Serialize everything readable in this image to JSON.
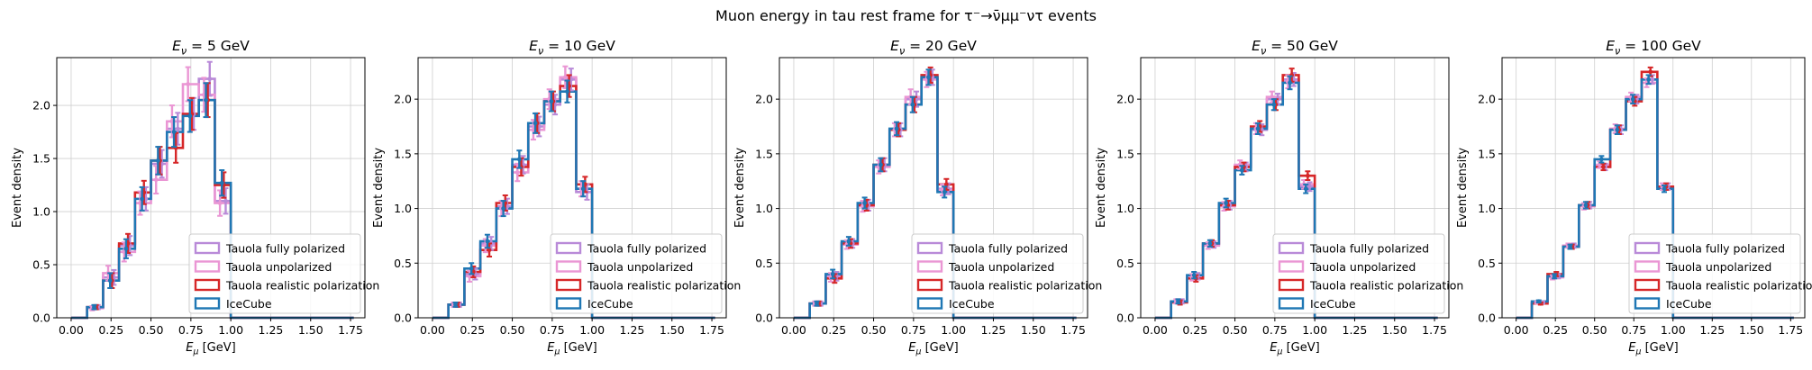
{
  "suptitle": "Muon energy in tau rest frame for τ⁻→ν̄μμ⁻ντ events",
  "colors": {
    "fully": "#b98ad8",
    "unpol": "#ea96d4",
    "realistic": "#d62728",
    "icecube": "#1f77b4",
    "grid": "#cfcfcf"
  },
  "chart_data": [
    {
      "type": "step-histogram",
      "title": "Eν = 5 GeV",
      "xlabel": "Eμ [GeV]",
      "ylabel": "Event density",
      "xlim": [
        -0.09,
        1.84
      ],
      "ylim": [
        0,
        2.45
      ],
      "xticks": [
        "0.00",
        "0.25",
        "0.50",
        "0.75",
        "1.00",
        "1.25",
        "1.50",
        "1.75"
      ],
      "yticks": [
        "0.0",
        "0.5",
        "1.0",
        "1.5",
        "2.0"
      ],
      "bin_edges": [
        0.0,
        0.1,
        0.2,
        0.3,
        0.4,
        0.5,
        0.6,
        0.7,
        0.8,
        0.9,
        1.0,
        1.77
      ],
      "legend": [
        "Tauola fully polarized",
        "Tauola unpolarized",
        "Tauola realistic polarization",
        "IceCube"
      ],
      "series": [
        {
          "name": "Tauola fully polarized",
          "key": "fully",
          "values": [
            0,
            0.1,
            0.38,
            0.68,
            1.12,
            1.45,
            1.78,
            1.92,
            2.25,
            1.1,
            0,
            0
          ],
          "errors": [
            0,
            0.02,
            0.07,
            0.09,
            0.11,
            0.13,
            0.15,
            0.15,
            0.16,
            0.12,
            0,
            0
          ]
        },
        {
          "name": "Tauola unpolarized",
          "key": "unpol",
          "values": [
            0,
            0.09,
            0.42,
            0.62,
            1.08,
            1.3,
            1.85,
            2.2,
            2.1,
            1.08,
            0,
            0
          ],
          "errors": [
            0,
            0.02,
            0.07,
            0.09,
            0.11,
            0.13,
            0.15,
            0.16,
            0.16,
            0.12,
            0,
            0
          ]
        },
        {
          "name": "Tauola realistic polarization",
          "key": "realistic",
          "values": [
            0,
            0.1,
            0.35,
            0.7,
            1.18,
            1.48,
            1.6,
            1.92,
            2.05,
            1.25,
            0,
            0
          ],
          "errors": [
            0,
            0.02,
            0.07,
            0.09,
            0.11,
            0.13,
            0.14,
            0.15,
            0.16,
            0.12,
            0,
            0
          ]
        },
        {
          "name": "IceCube",
          "key": "icecube",
          "values": [
            0,
            0.1,
            0.35,
            0.65,
            1.12,
            1.48,
            1.75,
            1.9,
            2.05,
            1.27,
            0,
            0
          ],
          "errors": [
            0,
            0.02,
            0.07,
            0.09,
            0.11,
            0.13,
            0.14,
            0.15,
            0.16,
            0.12,
            0,
            0
          ]
        }
      ]
    },
    {
      "type": "step-histogram",
      "title": "Eν = 10 GeV",
      "xlabel": "Eμ [GeV]",
      "ylabel": "Event density",
      "xlim": [
        -0.09,
        1.84
      ],
      "ylim": [
        0,
        2.38
      ],
      "xticks": [
        "0.00",
        "0.25",
        "0.50",
        "0.75",
        "1.00",
        "1.25",
        "1.50",
        "1.75"
      ],
      "yticks": [
        "0.0",
        "0.5",
        "1.0",
        "1.5",
        "2.0"
      ],
      "bin_edges": [
        0.0,
        0.1,
        0.2,
        0.3,
        0.4,
        0.5,
        0.6,
        0.7,
        0.8,
        0.9,
        1.0,
        1.77
      ],
      "legend": [
        "Tauola fully polarized",
        "Tauola unpolarized",
        "Tauola realistic polarization",
        "IceCube"
      ],
      "series": [
        {
          "name": "Tauola fully polarized",
          "key": "fully",
          "values": [
            0,
            0.12,
            0.4,
            0.68,
            1.02,
            1.4,
            1.75,
            1.95,
            2.18,
            1.15,
            0,
            0
          ],
          "errors": [
            0,
            0.02,
            0.05,
            0.06,
            0.07,
            0.08,
            0.09,
            0.09,
            0.1,
            0.07,
            0,
            0
          ]
        },
        {
          "name": "Tauola unpolarized",
          "key": "unpol",
          "values": [
            0,
            0.12,
            0.38,
            0.66,
            1.0,
            1.33,
            1.72,
            2.0,
            2.2,
            1.18,
            0,
            0
          ],
          "errors": [
            0,
            0.02,
            0.05,
            0.06,
            0.07,
            0.08,
            0.09,
            0.09,
            0.1,
            0.07,
            0,
            0
          ]
        },
        {
          "name": "Tauola realistic polarization",
          "key": "realistic",
          "values": [
            0,
            0.12,
            0.42,
            0.62,
            1.05,
            1.38,
            1.78,
            1.98,
            2.12,
            1.22,
            0,
            0
          ],
          "errors": [
            0,
            0.02,
            0.05,
            0.06,
            0.07,
            0.08,
            0.09,
            0.09,
            0.1,
            0.07,
            0,
            0
          ]
        },
        {
          "name": "IceCube",
          "key": "icecube",
          "values": [
            0,
            0.12,
            0.45,
            0.7,
            1.0,
            1.45,
            1.78,
            1.98,
            2.07,
            1.18,
            0,
            0
          ],
          "errors": [
            0,
            0.02,
            0.05,
            0.06,
            0.07,
            0.08,
            0.09,
            0.09,
            0.1,
            0.07,
            0,
            0
          ]
        }
      ]
    },
    {
      "type": "step-histogram",
      "title": "Eν = 20 GeV",
      "xlabel": "Eμ [GeV]",
      "ylabel": "Event density",
      "xlim": [
        -0.09,
        1.84
      ],
      "ylim": [
        0,
        2.38
      ],
      "xticks": [
        "0.00",
        "0.25",
        "0.50",
        "0.75",
        "1.00",
        "1.25",
        "1.50",
        "1.75"
      ],
      "yticks": [
        "0.0",
        "0.5",
        "1.0",
        "1.5",
        "2.0"
      ],
      "bin_edges": [
        0.0,
        0.1,
        0.2,
        0.3,
        0.4,
        0.5,
        0.6,
        0.7,
        0.8,
        0.9,
        1.0,
        1.77
      ],
      "legend": [
        "Tauola fully polarized",
        "Tauola unpolarized",
        "Tauola realistic polarization",
        "IceCube"
      ],
      "series": [
        {
          "name": "Tauola fully polarized",
          "key": "fully",
          "values": [
            0,
            0.13,
            0.38,
            0.68,
            1.03,
            1.4,
            1.72,
            2.0,
            2.2,
            1.18,
            0,
            0
          ],
          "errors": [
            0,
            0.02,
            0.04,
            0.04,
            0.05,
            0.06,
            0.06,
            0.07,
            0.07,
            0.05,
            0,
            0
          ]
        },
        {
          "name": "Tauola unpolarized",
          "key": "unpol",
          "values": [
            0,
            0.13,
            0.37,
            0.67,
            1.02,
            1.38,
            1.72,
            2.02,
            2.18,
            1.17,
            0,
            0
          ],
          "errors": [
            0,
            0.02,
            0.04,
            0.04,
            0.05,
            0.06,
            0.06,
            0.07,
            0.07,
            0.05,
            0,
            0
          ]
        },
        {
          "name": "Tauola realistic polarization",
          "key": "realistic",
          "values": [
            0,
            0.13,
            0.36,
            0.68,
            1.03,
            1.4,
            1.72,
            1.95,
            2.22,
            1.22,
            0,
            0
          ],
          "errors": [
            0,
            0.02,
            0.04,
            0.04,
            0.05,
            0.06,
            0.06,
            0.07,
            0.07,
            0.05,
            0,
            0
          ]
        },
        {
          "name": "IceCube",
          "key": "icecube",
          "values": [
            0,
            0.13,
            0.4,
            0.7,
            1.05,
            1.4,
            1.73,
            1.95,
            2.2,
            1.15,
            0,
            0
          ],
          "errors": [
            0,
            0.02,
            0.04,
            0.04,
            0.05,
            0.06,
            0.06,
            0.07,
            0.07,
            0.05,
            0,
            0
          ]
        }
      ]
    },
    {
      "type": "step-histogram",
      "title": "Eν = 50 GeV",
      "xlabel": "Eμ [GeV]",
      "ylabel": "Event density",
      "xlim": [
        -0.09,
        1.84
      ],
      "ylim": [
        0,
        2.38
      ],
      "xticks": [
        "0.00",
        "0.25",
        "0.50",
        "0.75",
        "1.00",
        "1.25",
        "1.50",
        "1.75"
      ],
      "yticks": [
        "0.0",
        "0.5",
        "1.0",
        "1.5",
        "2.0"
      ],
      "bin_edges": [
        0.0,
        0.1,
        0.2,
        0.3,
        0.4,
        0.5,
        0.6,
        0.7,
        0.8,
        0.9,
        1.0,
        1.77
      ],
      "legend": [
        "Tauola fully polarized",
        "Tauola unpolarized",
        "Tauola realistic polarization",
        "IceCube"
      ],
      "series": [
        {
          "name": "Tauola fully polarized",
          "key": "fully",
          "values": [
            0,
            0.15,
            0.38,
            0.67,
            1.03,
            1.38,
            1.72,
            2.0,
            2.18,
            1.2,
            0,
            0
          ],
          "errors": [
            0,
            0.02,
            0.03,
            0.03,
            0.04,
            0.04,
            0.05,
            0.05,
            0.06,
            0.04,
            0,
            0
          ]
        },
        {
          "name": "Tauola unpolarized",
          "key": "unpol",
          "values": [
            0,
            0.15,
            0.37,
            0.66,
            1.02,
            1.4,
            1.73,
            2.02,
            2.16,
            1.22,
            0,
            0
          ],
          "errors": [
            0,
            0.02,
            0.03,
            0.03,
            0.04,
            0.04,
            0.05,
            0.05,
            0.06,
            0.04,
            0,
            0
          ]
        },
        {
          "name": "Tauola realistic polarization",
          "key": "realistic",
          "values": [
            0,
            0.14,
            0.36,
            0.68,
            1.03,
            1.38,
            1.75,
            1.95,
            2.22,
            1.3,
            0,
            0
          ],
          "errors": [
            0,
            0.02,
            0.03,
            0.03,
            0.04,
            0.04,
            0.05,
            0.05,
            0.06,
            0.04,
            0,
            0
          ]
        },
        {
          "name": "IceCube",
          "key": "icecube",
          "values": [
            0,
            0.15,
            0.39,
            0.68,
            1.05,
            1.35,
            1.73,
            1.95,
            2.15,
            1.18,
            0,
            0
          ],
          "errors": [
            0,
            0.02,
            0.03,
            0.03,
            0.04,
            0.04,
            0.05,
            0.05,
            0.06,
            0.04,
            0,
            0
          ]
        }
      ]
    },
    {
      "type": "step-histogram",
      "title": "Eν = 100 GeV",
      "xlabel": "Eμ [GeV]",
      "ylabel": "Event density",
      "xlim": [
        -0.09,
        1.84
      ],
      "ylim": [
        0,
        2.38
      ],
      "xticks": [
        "0.00",
        "0.25",
        "0.50",
        "0.75",
        "1.00",
        "1.25",
        "1.50",
        "1.75"
      ],
      "yticks": [
        "0.0",
        "0.5",
        "1.0",
        "1.5",
        "2.0"
      ],
      "bin_edges": [
        0.0,
        0.1,
        0.2,
        0.3,
        0.4,
        0.5,
        0.6,
        0.7,
        0.8,
        0.9,
        1.0,
        1.77
      ],
      "legend": [
        "Tauola fully polarized",
        "Tauola unpolarized",
        "Tauola realistic polarization",
        "IceCube"
      ],
      "series": [
        {
          "name": "Tauola fully polarized",
          "key": "fully",
          "values": [
            0,
            0.14,
            0.38,
            0.66,
            1.03,
            1.38,
            1.72,
            2.0,
            2.18,
            1.2,
            0,
            0
          ],
          "errors": [
            0,
            0.01,
            0.02,
            0.02,
            0.03,
            0.03,
            0.04,
            0.04,
            0.04,
            0.03,
            0,
            0
          ]
        },
        {
          "name": "Tauola unpolarized",
          "key": "unpol",
          "values": [
            0,
            0.14,
            0.37,
            0.66,
            1.02,
            1.4,
            1.73,
            2.02,
            2.15,
            1.2,
            0,
            0
          ],
          "errors": [
            0,
            0.01,
            0.02,
            0.02,
            0.03,
            0.03,
            0.04,
            0.04,
            0.04,
            0.03,
            0,
            0
          ]
        },
        {
          "name": "Tauola realistic polarization",
          "key": "realistic",
          "values": [
            0,
            0.13,
            0.4,
            0.65,
            1.03,
            1.38,
            1.72,
            1.98,
            2.25,
            1.2,
            0,
            0
          ],
          "errors": [
            0,
            0.01,
            0.02,
            0.02,
            0.03,
            0.03,
            0.04,
            0.04,
            0.04,
            0.03,
            0,
            0
          ]
        },
        {
          "name": "IceCube",
          "key": "icecube",
          "values": [
            0,
            0.15,
            0.38,
            0.65,
            1.03,
            1.45,
            1.72,
            2.0,
            2.18,
            1.18,
            0,
            0
          ],
          "errors": [
            0,
            0.01,
            0.02,
            0.02,
            0.03,
            0.03,
            0.04,
            0.04,
            0.04,
            0.03,
            0,
            0
          ]
        }
      ]
    }
  ]
}
